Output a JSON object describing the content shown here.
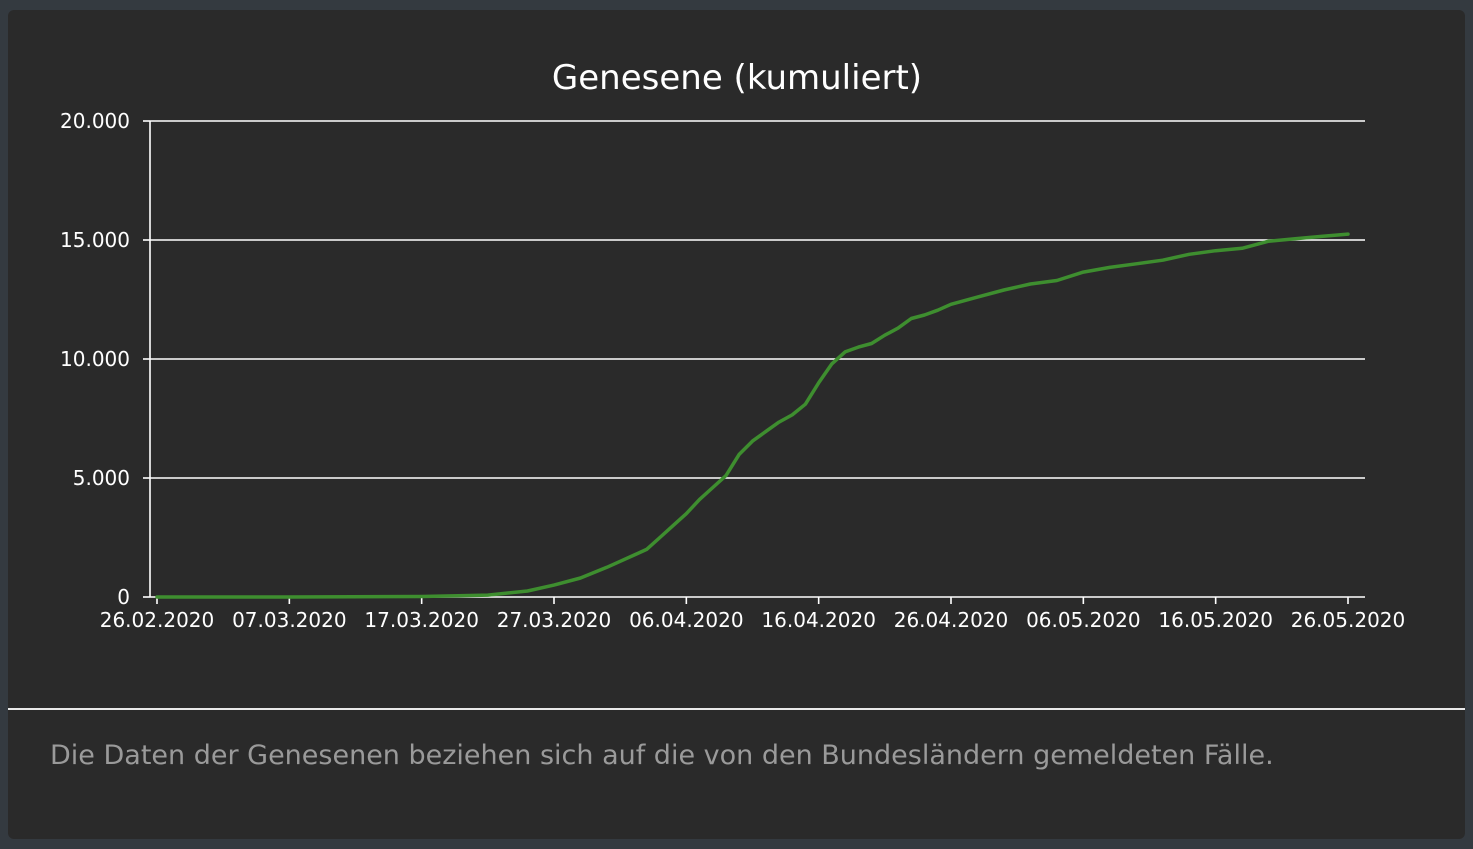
{
  "chart_data": {
    "type": "line",
    "title": "Genesene (kumuliert)",
    "xlabel": "",
    "ylabel": "",
    "ylim": [
      0,
      20000
    ],
    "y_ticks": [
      0,
      5000,
      10000,
      15000,
      20000
    ],
    "y_tick_labels": [
      "0",
      "5.000",
      "10.000",
      "15.000",
      "20.000"
    ],
    "x_tick_labels": [
      "26.02.2020",
      "07.03.2020",
      "17.03.2020",
      "27.03.2020",
      "06.04.2020",
      "16.04.2020",
      "26.04.2020",
      "06.05.2020",
      "16.05.2020",
      "26.05.2020"
    ],
    "x_start": "2020-02-26",
    "x_end": "2020-05-26",
    "grid": true,
    "legend": "none",
    "colors": {
      "line": "#3e8e2f",
      "grid": "#ffffff",
      "text": "#ffffff"
    },
    "series": [
      {
        "x": [
          "2020-02-26",
          "2020-03-07",
          "2020-03-17",
          "2020-03-22",
          "2020-03-25",
          "2020-03-27",
          "2020-03-29",
          "2020-03-31",
          "2020-04-01",
          "2020-04-02",
          "2020-04-03",
          "2020-04-04",
          "2020-04-05",
          "2020-04-06",
          "2020-04-07",
          "2020-04-08",
          "2020-04-09",
          "2020-04-10",
          "2020-04-11",
          "2020-04-12",
          "2020-04-13",
          "2020-04-14",
          "2020-04-15",
          "2020-04-16",
          "2020-04-17",
          "2020-04-18",
          "2020-04-19",
          "2020-04-20",
          "2020-04-21",
          "2020-04-22",
          "2020-04-23",
          "2020-04-24",
          "2020-04-25",
          "2020-04-26",
          "2020-04-28",
          "2020-04-30",
          "2020-05-02",
          "2020-05-04",
          "2020-05-06",
          "2020-05-08",
          "2020-05-10",
          "2020-05-12",
          "2020-05-14",
          "2020-05-16",
          "2020-05-18",
          "2020-05-20",
          "2020-05-22",
          "2020-05-24",
          "2020-05-26"
        ],
        "y": [
          0,
          0,
          20,
          80,
          250,
          500,
          800,
          1250,
          1500,
          1750,
          2000,
          2500,
          3000,
          3500,
          4100,
          4600,
          5100,
          6000,
          6550,
          6950,
          7350,
          7650,
          8100,
          9000,
          9800,
          10300,
          10500,
          10650,
          11000,
          11300,
          11700,
          11850,
          12050,
          12300,
          12600,
          12900,
          13150,
          13300,
          13650,
          13850,
          14000,
          14150,
          14400,
          14550,
          14650,
          14950,
          15050,
          15150,
          15250
        ]
      }
    ]
  },
  "footer": {
    "note": "Die Daten der Genesenen beziehen sich auf die von den Bundesländern gemeldeten Fälle."
  }
}
